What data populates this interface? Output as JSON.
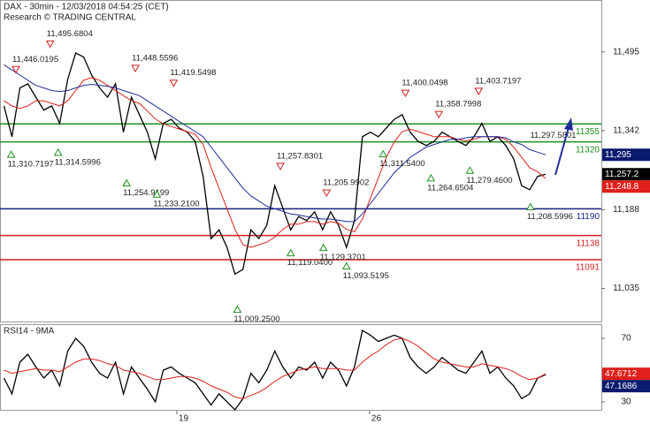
{
  "chart_data": [
    {
      "type": "line",
      "title": "DAX - 30min - 12/03/2018 04:54:25 (CET)",
      "subtitle": "Research © TRADING CENTRAL",
      "xlim": [
        -0.5,
        75
      ],
      "ylim": [
        10969,
        11596
      ],
      "yticks": [
        {
          "value": 11495,
          "label": "11,495"
        },
        {
          "value": 11342,
          "label": "11,342"
        },
        {
          "value": 11188,
          "label": "11,188"
        },
        {
          "value": 11035,
          "label": "11,035"
        }
      ],
      "series": [
        {
          "color": "#000000",
          "values": [
            11390,
            11330,
            11425,
            11433,
            11407,
            11382,
            11390,
            11356,
            11442,
            11493,
            11485,
            11450,
            11425,
            11407,
            11433,
            11339,
            11407,
            11373,
            11339,
            11287,
            11356,
            11364,
            11347,
            11339,
            11321,
            11253,
            11132,
            11149,
            11115,
            11063,
            11072,
            11149,
            11132,
            11158,
            11235,
            11192,
            11149,
            11175,
            11167,
            11184,
            11149,
            11184,
            11158,
            11115,
            11167,
            11330,
            11339,
            11330,
            11347,
            11364,
            11373,
            11339,
            11321,
            11313,
            11321,
            11339,
            11330,
            11321,
            11313,
            11330,
            11356,
            11321,
            11330,
            11313,
            11287,
            11235,
            11227,
            11253,
            11257.2
          ]
        },
        {
          "color": "#e0201b",
          "values": [
            11400,
            11390,
            11385,
            11390,
            11400,
            11400,
            11395,
            11390,
            11400,
            11420,
            11440,
            11445,
            11440,
            11430,
            11420,
            11410,
            11400,
            11395,
            11380,
            11365,
            11355,
            11350,
            11345,
            11340,
            11335,
            11315,
            11270,
            11230,
            11190,
            11150,
            11120,
            11115,
            11120,
            11125,
            11135,
            11150,
            11160,
            11160,
            11165,
            11165,
            11160,
            11165,
            11162,
            11150,
            11145,
            11170,
            11210,
            11250,
            11290,
            11320,
            11340,
            11345,
            11340,
            11335,
            11330,
            11330,
            11330,
            11325,
            11322,
            11325,
            11330,
            11330,
            11330,
            11325,
            11310,
            11290,
            11270,
            11262,
            11248.8
          ]
        },
        {
          "color": "#1f2d9c",
          "values": [
            11470,
            11460,
            11450,
            11440,
            11430,
            11425,
            11420,
            11418,
            11420,
            11425,
            11430,
            11432,
            11430,
            11428,
            11425,
            11420,
            11415,
            11410,
            11400,
            11390,
            11380,
            11370,
            11360,
            11350,
            11340,
            11330,
            11310,
            11290,
            11270,
            11250,
            11230,
            11215,
            11205,
            11195,
            11190,
            11185,
            11180,
            11178,
            11175,
            11172,
            11170,
            11170,
            11168,
            11165,
            11165,
            11180,
            11200,
            11220,
            11240,
            11260,
            11275,
            11290,
            11300,
            11310,
            11315,
            11320,
            11325,
            11325,
            11328,
            11330,
            11330,
            11330,
            11330,
            11328,
            11320,
            11315,
            11305,
            11300,
            11295
          ]
        }
      ],
      "levels": [
        {
          "value": 11355,
          "color": "#1f8f1f"
        },
        {
          "value": 11320,
          "color": "#1f8f1f"
        },
        {
          "value": 11190,
          "color": "#1a237e"
        },
        {
          "value": 11138,
          "color": "#d21f1f"
        },
        {
          "value": 11091,
          "color": "#d21f1f"
        }
      ],
      "annotations": [
        {
          "label": "11,446.0195",
          "value": 11446.0195,
          "x": 1.5,
          "kind": "high"
        },
        {
          "label": "11,495.6804",
          "value": 11495.6804,
          "x": 5.8,
          "kind": "high"
        },
        {
          "label": "11,448.5596",
          "value": 11448.5596,
          "x": 16.5,
          "kind": "high"
        },
        {
          "label": "11,419.5498",
          "value": 11419.5498,
          "x": 21.3,
          "kind": "high"
        },
        {
          "label": "11,310.7197",
          "value": 11310.7197,
          "x": 0.9,
          "kind": "low"
        },
        {
          "label": "11,314.5996",
          "value": 11314.5996,
          "x": 6.8,
          "kind": "low"
        },
        {
          "label": "11,254.9199",
          "value": 11254.9199,
          "x": 15.4,
          "kind": "low"
        },
        {
          "label": "11,233.2100",
          "value": 11233.21,
          "x": 19.2,
          "kind": "low"
        },
        {
          "label": "11,257.8301",
          "value": 11257.8301,
          "x": 34.7,
          "kind": "high"
        },
        {
          "label": "11,205.9902",
          "value": 11205.9902,
          "x": 40.5,
          "kind": "high"
        },
        {
          "label": "11,119.0400",
          "value": 11119.04,
          "x": 36.0,
          "kind": "low"
        },
        {
          "label": "11,129.3701",
          "value": 11129.3701,
          "x": 40.1,
          "kind": "low"
        },
        {
          "label": "11,093.5195",
          "value": 11093.5195,
          "x": 43.0,
          "kind": "low"
        },
        {
          "label": "11,009.2500",
          "value": 11009.25,
          "x": 29.3,
          "kind": "low"
        },
        {
          "label": "11,400.0498",
          "value": 11400.0498,
          "x": 50.4,
          "kind": "high"
        },
        {
          "label": "11,358.7998",
          "value": 11358.7998,
          "x": 54.6,
          "kind": "high"
        },
        {
          "label": "11,403.7197",
          "value": 11403.7197,
          "x": 59.6,
          "kind": "high"
        },
        {
          "label": "11,311.5400",
          "value": 11311.54,
          "x": 47.6,
          "kind": "low"
        },
        {
          "label": "11,264.6504",
          "value": 11264.6504,
          "x": 53.6,
          "kind": "low"
        },
        {
          "label": "11,279.4600",
          "value": 11279.46,
          "x": 58.5,
          "kind": "low"
        },
        {
          "label": "11,297.5801",
          "value": 11297.5801,
          "x": 66.5
        },
        {
          "label": "11,208.5996",
          "value": 11208.5996,
          "x": 66.1,
          "kind": "low"
        }
      ],
      "tags": [
        {
          "label": "11,295",
          "value": 11295,
          "color": "#0a1a6e"
        },
        {
          "label": "11,257.2",
          "value": 11257.2,
          "color": "#000000"
        },
        {
          "label": "11,248.8",
          "value": 11248.8,
          "color": "#e0201b"
        }
      ]
    },
    {
      "type": "line",
      "title": "RSI14 - 9MA",
      "xlim": [
        -0.5,
        75
      ],
      "xticks": [
        {
          "value": 21.7,
          "label": "19"
        },
        {
          "value": 45.9,
          "label": "26"
        }
      ],
      "ylim": [
        24.4,
        78.9
      ],
      "yticks": [
        70,
        30
      ],
      "series": [
        {
          "color": "#000000",
          "values": [
            45,
            35,
            55,
            60,
            52,
            45,
            50,
            40,
            62,
            70,
            65,
            55,
            48,
            45,
            55,
            35,
            52,
            45,
            38,
            30,
            50,
            52,
            48,
            45,
            42,
            35,
            28,
            35,
            30,
            25,
            32,
            48,
            42,
            50,
            62,
            52,
            45,
            52,
            50,
            55,
            45,
            55,
            50,
            40,
            52,
            75,
            72,
            68,
            70,
            72,
            70,
            58,
            52,
            48,
            52,
            58,
            54,
            50,
            48,
            55,
            62,
            48,
            52,
            45,
            40,
            32,
            35,
            45,
            47.1686
          ]
        },
        {
          "color": "#e0201b",
          "values": [
            50,
            48,
            49,
            50,
            51,
            50,
            50,
            49,
            52,
            55,
            57,
            57,
            56,
            54,
            53,
            50,
            49,
            48,
            46,
            44,
            44,
            45,
            46,
            46,
            45,
            43,
            40,
            38,
            36,
            33,
            32,
            34,
            36,
            39,
            43,
            46,
            48,
            50,
            51,
            52,
            51,
            51,
            51,
            50,
            50,
            55,
            59,
            62,
            66,
            69,
            70,
            68,
            65,
            61,
            57,
            55,
            54,
            53,
            52,
            52,
            54,
            53,
            52,
            51,
            49,
            46,
            44,
            45,
            47.6712
          ]
        }
      ],
      "tags": [
        {
          "label": "47.6712",
          "value": 47.6712,
          "color": "#e0201b"
        },
        {
          "label": "47.1686",
          "value": 47.1686,
          "color": "#0a1a6e"
        }
      ]
    }
  ]
}
